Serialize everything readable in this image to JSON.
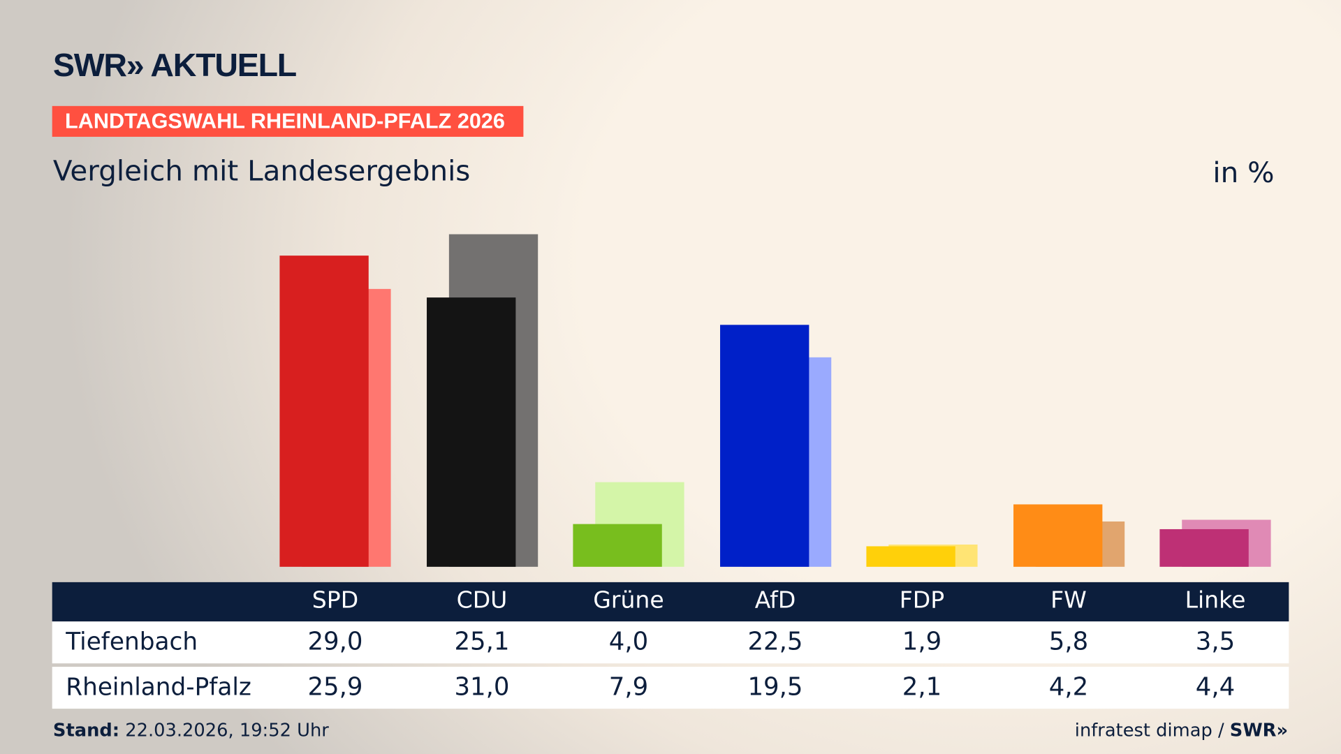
{
  "header": {
    "logo": "SWR» AKTUELL",
    "badge": "LANDTAGSWAHL RHEINLAND-PFALZ 2026",
    "subtitle": "Vergleich mit Landesergebnis",
    "unit": "in %"
  },
  "chart_data": {
    "type": "bar",
    "categories": [
      "SPD",
      "CDU",
      "Grüne",
      "AfD",
      "FDP",
      "FW",
      "Linke"
    ],
    "series": [
      {
        "name": "Tiefenbach",
        "values": [
          29.0,
          25.1,
          4.0,
          22.5,
          1.9,
          5.8,
          3.5
        ],
        "labels": [
          "29,0",
          "25,1",
          "4,0",
          "22,5",
          "1,9",
          "5,8",
          "3,5"
        ]
      },
      {
        "name": "Rheinland-Pfalz",
        "values": [
          25.9,
          31.0,
          7.9,
          19.5,
          2.1,
          4.2,
          4.4
        ],
        "labels": [
          "25,9",
          "31,0",
          "7,9",
          "19,5",
          "2,1",
          "4,2",
          "4,4"
        ]
      }
    ],
    "colors": {
      "primary": [
        "#d81f1f",
        "#141414",
        "#78be1e",
        "#0020c8",
        "#ffd00a",
        "#ff8c16",
        "#be3075"
      ],
      "secondary": [
        "#ff7770",
        "#737170",
        "#d4f5a8",
        "#9aaafe",
        "#ffe474",
        "#e1a56e",
        "#e08ab5"
      ]
    },
    "ylim": [
      0,
      31
    ]
  },
  "footer": {
    "stand_label": "Stand:",
    "stand_value": " 22.03.2026, 19:52 Uhr",
    "source": "infratest dimap / ",
    "source_logo": "SWR»"
  }
}
